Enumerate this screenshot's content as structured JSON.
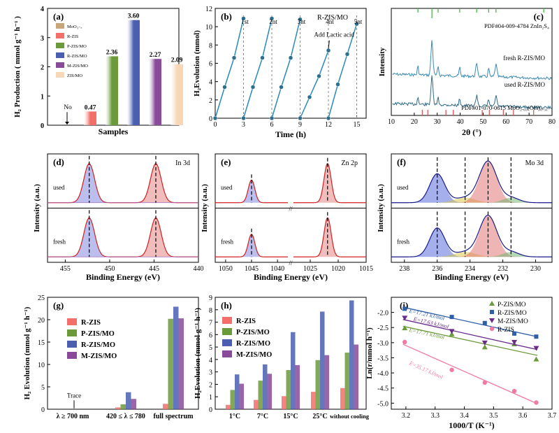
{
  "chart_data": [
    {
      "panel": "(a)",
      "type": "bar",
      "ylabel": "H₂ Production ( mmol g⁻¹ h⁻¹ )",
      "xlabel": "Samples",
      "categories": [
        "MoO₃₋ₓ",
        "R-ZIS",
        "P-ZIS/MO",
        "R-ZIS/MO",
        "M-ZIS/MO",
        "ZIS/MO"
      ],
      "values": [
        0,
        0.47,
        2.36,
        3.6,
        2.27,
        2.09
      ],
      "value_labels": [
        "No",
        "0.47",
        "2.36",
        "3.60",
        "2.27",
        "2.09"
      ],
      "colors": [
        "#c9a57a",
        "#f26f6a",
        "#6b9a3a",
        "#4a5fb0",
        "#8a4a9a",
        "#f7d7b5"
      ],
      "ylim": [
        0,
        4
      ],
      "yticks": [
        "0",
        "1",
        "2",
        "3",
        "4"
      ]
    },
    {
      "panel": "(b)",
      "type": "line",
      "title": "R-ZIS/MO",
      "xlabel": "Time (h)",
      "ylabel": "H₂Evolution (mmol)",
      "xlim": [
        0,
        16
      ],
      "ylim": [
        0,
        12
      ],
      "xticks": [
        "0",
        "3",
        "6",
        "9",
        "12",
        "15"
      ],
      "yticks": [
        "0",
        "2",
        "4",
        "6",
        "8",
        "10",
        "12"
      ],
      "cycle_labels": [
        "1st",
        "2nt",
        "3nt",
        "4nt",
        "5nt"
      ],
      "cycle_dividers": [
        3,
        6,
        9,
        12,
        15
      ],
      "annotation": "Add Lactic acid",
      "series": [
        {
          "name": "1st",
          "x": [
            0,
            1,
            2,
            3
          ],
          "y": [
            0,
            3.4,
            6.6,
            10.9
          ]
        },
        {
          "name": "2nt",
          "x": [
            3,
            4,
            5,
            6
          ],
          "y": [
            0,
            3.4,
            6.6,
            10.9
          ]
        },
        {
          "name": "3nt",
          "x": [
            6,
            7,
            8,
            9
          ],
          "y": [
            0,
            3.4,
            6.6,
            10.8
          ]
        },
        {
          "name": "4nt",
          "x": [
            9,
            10,
            11,
            12
          ],
          "y": [
            0,
            2.3,
            4.6,
            7.4
          ]
        },
        {
          "name": "5nt",
          "x": [
            12,
            13,
            14,
            15
          ],
          "y": [
            0,
            3.7,
            7.0,
            10.3
          ]
        }
      ]
    },
    {
      "panel": "(c)",
      "type": "line",
      "xlabel": "2θ (°)",
      "ylabel": "Intensity",
      "xlim": [
        10,
        80
      ],
      "xticks": [
        "10",
        "20",
        "30",
        "40",
        "50",
        "60",
        "70",
        "80"
      ],
      "labels": [
        "PDF#04-009-4784 ZnIn₂S₄",
        "fresh R-ZIS/MO",
        "used R-ZIS/MO",
        "PDF#01-070-0615 MoO₂.₆₉(OH)₀.₃₁"
      ],
      "ref_zis_peaks": [
        21.6,
        27.7,
        30.4,
        39.8,
        47.2,
        52.4,
        55.6,
        76.4
      ],
      "ref_moo_peaks": [
        23.5,
        25.9,
        33.8,
        37.0,
        49.6,
        52.7,
        58.8,
        63.2,
        72.0
      ],
      "major_peaks": [
        27.7,
        47.2,
        55.6
      ]
    },
    {
      "panel": "(d)",
      "type": "line",
      "title": "In 3d",
      "xlabel": "Binding Energy (eV)",
      "ylabel": "Intensity (a.u.)",
      "xlim": [
        457,
        440
      ],
      "xticks": [
        "455",
        "450",
        "445",
        "440"
      ],
      "states": [
        "used",
        "fresh"
      ],
      "peak_positions": [
        452.3,
        444.8
      ]
    },
    {
      "panel": "(e)",
      "type": "line",
      "title": "Zn 2p",
      "xlabel": "Binding Energy (eV)",
      "ylabel": "Intensity (a.u.)",
      "xticks": [
        "1050",
        "1045",
        "1040",
        "1025",
        "1020",
        "1015"
      ],
      "states": [
        "used",
        "fresh"
      ],
      "peak_positions": [
        1045.0,
        1021.9
      ]
    },
    {
      "panel": "(f)",
      "type": "line",
      "title": "Mo 3d",
      "xlabel": "Binding Energy (eV)",
      "ylabel": "Intensity (a.u.)",
      "xlim": [
        238,
        229
      ],
      "xticks": [
        "238",
        "236",
        "234",
        "232",
        "230"
      ],
      "states": [
        "used",
        "fresh"
      ],
      "peak_positions": [
        236.0,
        234.3,
        232.9,
        231.5
      ]
    },
    {
      "panel": "(g)",
      "type": "bar",
      "ylabel": "H₂ Evolution (mmol g⁻¹ h⁻¹)",
      "ylim": [
        0,
        25
      ],
      "yticks": [
        "0",
        "5",
        "10",
        "15",
        "20",
        "25"
      ],
      "categories": [
        "λ ≥ 700 nm",
        "420 ≤ λ ≤ 780",
        "full spectrum"
      ],
      "annotation": "Trace",
      "series": [
        {
          "name": "R-ZIS",
          "color": "#f26f6a",
          "values": [
            0,
            0.4,
            1.2
          ]
        },
        {
          "name": "P-ZIS/MO",
          "color": "#6b9a3a",
          "values": [
            0,
            1.1,
            20.2
          ]
        },
        {
          "name": "R-ZIS/MO",
          "color": "#4a5fb0",
          "values": [
            0,
            3.8,
            22.9
          ]
        },
        {
          "name": "M-ZIS/MO",
          "color": "#8a4a9a",
          "values": [
            0,
            2.3,
            20.3
          ]
        }
      ]
    },
    {
      "panel": "(h)",
      "type": "bar",
      "ylabel": "H₂Evolution (mmol g⁻¹ h⁻¹)",
      "ylim": [
        0,
        9
      ],
      "yticks": [
        "0",
        "1",
        "2",
        "3",
        "4",
        "5",
        "6",
        "7",
        "8",
        "9"
      ],
      "categories": [
        "1°C",
        "7°C",
        "15°C",
        "25°C",
        "without cooling"
      ],
      "series": [
        {
          "name": "R-ZIS",
          "color": "#f26f6a",
          "values": [
            0.35,
            0.75,
            1.05,
            1.4,
            1.7
          ]
        },
        {
          "name": "P-ZIS/MO",
          "color": "#6b9a3a",
          "values": [
            1.55,
            2.3,
            3.15,
            3.95,
            4.55
          ]
        },
        {
          "name": "R-ZIS/MO",
          "color": "#4a5fb0",
          "values": [
            2.8,
            3.6,
            6.2,
            7.85,
            8.75
          ]
        },
        {
          "name": "M-ZIS/MO",
          "color": "#8a4a9a",
          "values": [
            2.05,
            2.85,
            3.55,
            4.35,
            5.2
          ]
        }
      ]
    },
    {
      "panel": "(i)",
      "type": "scatter",
      "xlabel": "1000/T (K⁻¹)",
      "ylabel": "Ln(r/mmol h⁻¹)",
      "xlim": [
        3.15,
        3.7
      ],
      "ylim": [
        -5.2,
        -1.5
      ],
      "xticks": [
        "3.2",
        "3.3",
        "3.4",
        "3.5",
        "3.6",
        "3.7"
      ],
      "yticks": [
        "-2.0",
        "-2.5",
        "-3.0",
        "-3.5",
        "-4.0",
        "-4.5",
        "-5.0"
      ],
      "series": [
        {
          "name": "P-ZIS/MO",
          "marker": "triangle-up",
          "color": "#6b9a3a",
          "ea_label": "E=17.71 kJ/mol",
          "x": [
            3.196,
            3.357,
            3.47,
            3.571,
            3.646
          ],
          "y": [
            -2.52,
            -2.72,
            -3.15,
            -3.05,
            -3.55
          ]
        },
        {
          "name": "R-ZIS/MO",
          "marker": "square",
          "color": "#2e5fa8",
          "ea_label": "E=17.21 kJ/mol",
          "x": [
            3.196,
            3.357,
            3.47,
            3.571,
            3.646
          ],
          "y": [
            -1.88,
            -2.15,
            -2.35,
            -2.7,
            -2.8
          ]
        },
        {
          "name": "M-ZIS/MO",
          "marker": "triangle-down",
          "color": "#6a2a8a",
          "ea_label": "E=17.63 kJ/mol",
          "x": [
            3.196,
            3.357,
            3.47,
            3.571,
            3.646
          ],
          "y": [
            -2.18,
            -2.62,
            -3.0,
            -2.98,
            -3.18
          ]
        },
        {
          "name": "R-ZIS",
          "marker": "circle",
          "color": "#f07aa0",
          "ea_label": "E=35.17 kJ/mol",
          "x": [
            3.196,
            3.357,
            3.47,
            3.571,
            3.646
          ],
          "y": [
            -2.98,
            -3.9,
            -4.32,
            -4.6,
            -4.98
          ]
        }
      ]
    }
  ]
}
